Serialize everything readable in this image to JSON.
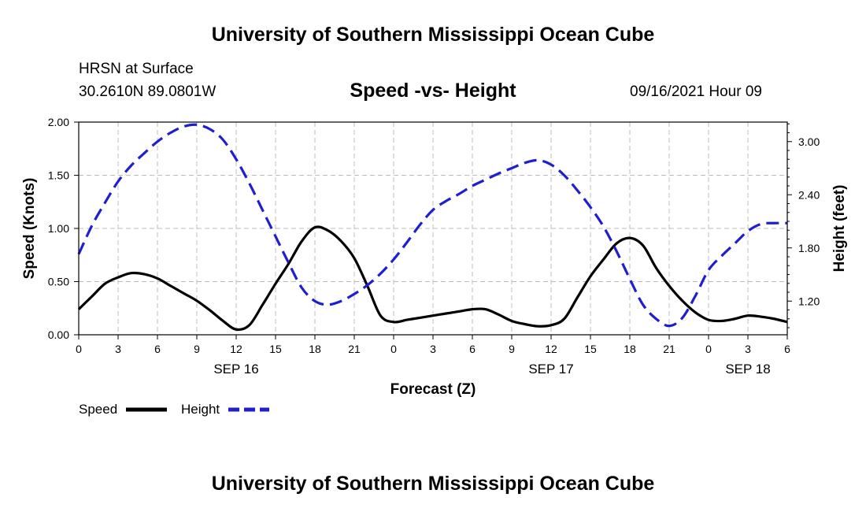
{
  "header": {
    "title": "University of Southern Mississippi Ocean Cube",
    "station": "HRSN at Surface",
    "coords": "30.2610N  89.0801W",
    "subtitle": "Speed -vs- Height",
    "datetime": "09/16/2021 Hour 09"
  },
  "footer": {
    "title": "University of Southern Mississippi Ocean Cube"
  },
  "legend": {
    "speed_label": "Speed",
    "height_label": "Height"
  },
  "chart_data": {
    "type": "line",
    "title": "Speed -vs- Height",
    "xlabel": "Forecast (Z)",
    "ylabel": "Speed (Knots)",
    "y2label": "Height (feet)",
    "xlim": [
      0,
      54
    ],
    "ylim": [
      0,
      2.0
    ],
    "y2lim": [
      0.82,
      3.22
    ],
    "grid": true,
    "legend_position": "bottom-left",
    "x_ticks": [
      0,
      3,
      6,
      9,
      12,
      15,
      18,
      21,
      24,
      27,
      30,
      33,
      36,
      39,
      42,
      45,
      48,
      51,
      54
    ],
    "x_tick_labels": [
      "0",
      "3",
      "6",
      "9",
      "12",
      "15",
      "18",
      "21",
      "0",
      "3",
      "6",
      "9",
      "12",
      "15",
      "18",
      "21",
      "0",
      "3",
      "6"
    ],
    "day_labels": [
      {
        "x": 12,
        "label": "SEP 16"
      },
      {
        "x": 36,
        "label": "SEP 17"
      },
      {
        "x": 51,
        "label": "SEP 18"
      }
    ],
    "y_ticks": [
      0,
      0.5,
      1.0,
      1.5,
      2.0
    ],
    "y_tick_labels": [
      "0.00",
      "0.50",
      "1.00",
      "1.50",
      "2.00"
    ],
    "y2_ticks": [
      1.2,
      1.8,
      2.4,
      3.0
    ],
    "y2_tick_labels": [
      "1.20",
      "1.80",
      "2.40",
      "3.00"
    ],
    "colors": {
      "speed": "#000000",
      "height": "#1f1fd0",
      "grid": "#bdbdbd"
    },
    "series": [
      {
        "name": "Speed",
        "axis": "left",
        "x": [
          0,
          1,
          2,
          3,
          4,
          5,
          6,
          7,
          8,
          9,
          10,
          11,
          12,
          13,
          14,
          15,
          16,
          17,
          18,
          19,
          20,
          21,
          22,
          23,
          24,
          25,
          26,
          27,
          28,
          29,
          30,
          31,
          32,
          33,
          34,
          35,
          36,
          37,
          38,
          39,
          40,
          41,
          42,
          43,
          44,
          45,
          46,
          47,
          48,
          49,
          50,
          51,
          52,
          53,
          54
        ],
        "values": [
          0.24,
          0.36,
          0.48,
          0.54,
          0.58,
          0.57,
          0.53,
          0.46,
          0.39,
          0.32,
          0.23,
          0.13,
          0.05,
          0.09,
          0.28,
          0.48,
          0.67,
          0.88,
          1.01,
          0.98,
          0.88,
          0.72,
          0.46,
          0.18,
          0.12,
          0.14,
          0.16,
          0.18,
          0.2,
          0.22,
          0.24,
          0.24,
          0.19,
          0.13,
          0.1,
          0.08,
          0.09,
          0.15,
          0.35,
          0.55,
          0.71,
          0.86,
          0.91,
          0.84,
          0.63,
          0.46,
          0.32,
          0.21,
          0.14,
          0.13,
          0.15,
          0.18,
          0.17,
          0.15,
          0.12
        ]
      },
      {
        "name": "Height",
        "axis": "right",
        "x": [
          0,
          1,
          2,
          3,
          4,
          5,
          6,
          7,
          8,
          9,
          10,
          11,
          12,
          13,
          14,
          15,
          16,
          17,
          18,
          19,
          20,
          21,
          22,
          23,
          24,
          25,
          26,
          27,
          28,
          29,
          30,
          31,
          32,
          33,
          34,
          35,
          36,
          37,
          38,
          39,
          40,
          41,
          42,
          43,
          44,
          45,
          46,
          47,
          48,
          49,
          50,
          51,
          52,
          53,
          54
        ],
        "values": [
          1.73,
          2.05,
          2.31,
          2.55,
          2.73,
          2.87,
          3.0,
          3.1,
          3.17,
          3.19,
          3.14,
          3.02,
          2.8,
          2.53,
          2.23,
          1.93,
          1.63,
          1.35,
          1.2,
          1.16,
          1.2,
          1.28,
          1.38,
          1.51,
          1.67,
          1.86,
          2.06,
          2.23,
          2.33,
          2.41,
          2.5,
          2.57,
          2.64,
          2.7,
          2.76,
          2.79,
          2.74,
          2.62,
          2.45,
          2.26,
          2.04,
          1.76,
          1.45,
          1.16,
          1.0,
          0.92,
          1.01,
          1.26,
          1.55,
          1.71,
          1.85,
          1.99,
          2.07,
          2.08,
          2.08
        ]
      }
    ]
  }
}
